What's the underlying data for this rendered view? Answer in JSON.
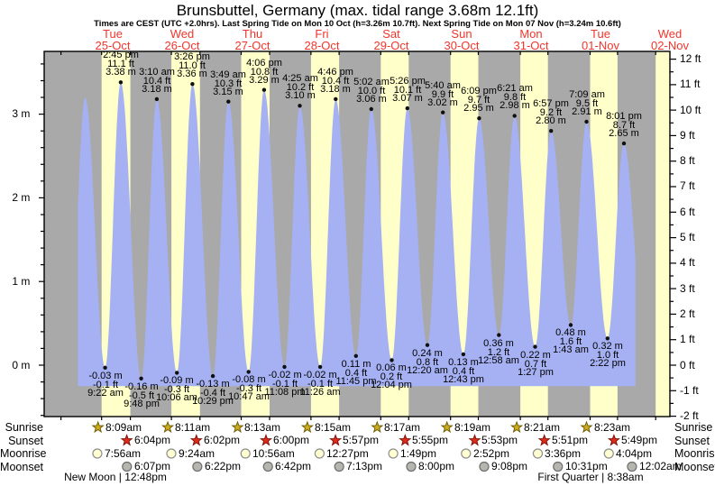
{
  "title": "Brunsbuttel, Germany (max. tidal range 3.68m 12.1ft)",
  "subtitle": "Times are CEST (UTC +2.0hrs). Last Spring Tide on Mon 10 Oct (h=3.26m 10.7ft). Next Spring Tide on Mon 07 Nov (h=3.24m 10.6ft)",
  "days": [
    {
      "weekday": "Tue",
      "date": "25-Oct"
    },
    {
      "weekday": "Wed",
      "date": "26-Oct"
    },
    {
      "weekday": "Thu",
      "date": "27-Oct"
    },
    {
      "weekday": "Fri",
      "date": "28-Oct"
    },
    {
      "weekday": "Sat",
      "date": "29-Oct"
    },
    {
      "weekday": "Sun",
      "date": "30-Oct"
    },
    {
      "weekday": "Mon",
      "date": "31-Oct"
    },
    {
      "weekday": "Tue",
      "date": "01-Nov"
    },
    {
      "weekday": "Wed",
      "date": "02-Nov"
    }
  ],
  "chart_data": {
    "type": "area",
    "y_axis_left": {
      "unit": "m",
      "ticks": [
        0,
        1,
        2,
        3
      ]
    },
    "y_axis_right": {
      "unit": "ft",
      "ticks": [
        -2,
        -1,
        0,
        1,
        2,
        3,
        4,
        5,
        6,
        7,
        8,
        9,
        10,
        11,
        12
      ]
    },
    "high_tides": [
      {
        "time": "2:45 pm",
        "ft": "11.1 ft",
        "m": "3.38 m",
        "t": 0.6146,
        "h": 3.38
      },
      {
        "time": "3:10 am",
        "ft": "10.4 ft",
        "m": "3.18 m",
        "t": 1.1319,
        "h": 3.18
      },
      {
        "time": "3:26 pm",
        "ft": "11.0 ft",
        "m": "3.36 m",
        "t": 1.6431,
        "h": 3.36
      },
      {
        "time": "3:49 am",
        "ft": "10.3 ft",
        "m": "3.15 m",
        "t": 2.159,
        "h": 3.15
      },
      {
        "time": "4:06 pm",
        "ft": "10.8 ft",
        "m": "3.29 m",
        "t": 2.6708,
        "h": 3.29
      },
      {
        "time": "4:25 am",
        "ft": "10.2 ft",
        "m": "3.10 m",
        "t": 3.184,
        "h": 3.1
      },
      {
        "time": "4:46 pm",
        "ft": "10.4 ft",
        "m": "3.18 m",
        "t": 3.6986,
        "h": 3.18
      },
      {
        "time": "5:02 am",
        "ft": "10.0 ft",
        "m": "3.06 m",
        "t": 4.2097,
        "h": 3.06
      },
      {
        "time": "5:26 pm",
        "ft": "10.1 ft",
        "m": "3.07 m",
        "t": 4.7264,
        "h": 3.07
      },
      {
        "time": "5:40 am",
        "ft": "9.9 ft",
        "m": "3.02 m",
        "t": 5.2361,
        "h": 3.02
      },
      {
        "time": "6:09 pm",
        "ft": "9.7 ft",
        "m": "2.95 m",
        "t": 5.7563,
        "h": 2.95
      },
      {
        "time": "6:21 am",
        "ft": "9.8 ft",
        "m": "2.98 m",
        "t": 6.2646,
        "h": 2.98
      },
      {
        "time": "6:57 pm",
        "ft": "9.2 ft",
        "m": "2.80 m",
        "t": 6.7896,
        "h": 2.8
      },
      {
        "time": "7:09 am",
        "ft": "9.5 ft",
        "m": "2.91 m",
        "t": 7.2979,
        "h": 2.91
      },
      {
        "time": "8:01 pm",
        "ft": "8.7 ft",
        "m": "2.65 m",
        "t": 7.834,
        "h": 2.65
      }
    ],
    "low_tides": [
      {
        "m": "-0.03 m",
        "ft": "-0.1 ft",
        "time": "9:22 am",
        "t": 0.3903,
        "h": -0.03
      },
      {
        "m": "-0.16 m",
        "ft": "-0.5 ft",
        "time": "9:48 pm",
        "t": 0.9083,
        "h": -0.16
      },
      {
        "m": "-0.09 m",
        "ft": "-0.3 ft",
        "time": "10:06 am",
        "t": 1.4208,
        "h": -0.09
      },
      {
        "m": "-0.13 m",
        "ft": "-0.4 ft",
        "time": "10:29 pm",
        "t": 1.9368,
        "h": -0.13
      },
      {
        "m": "-0.08 m",
        "ft": "-0.3 ft",
        "time": "10:47 am",
        "t": 2.4493,
        "h": -0.08
      },
      {
        "m": "-0.02 m",
        "ft": "-0.1 ft",
        "time": "11:08 pm",
        "t": 2.9639,
        "h": -0.02
      },
      {
        "m": "-0.02 m",
        "ft": "-0.1 ft",
        "time": "11:26 am",
        "t": 3.4764,
        "h": -0.02
      },
      {
        "m": "0.11 m",
        "ft": "0.4 ft",
        "time": "11:45 pm",
        "t": 3.9896,
        "h": 0.11
      },
      {
        "m": "0.06 m",
        "ft": "0.2 ft",
        "time": "12:04 pm",
        "t": 4.5028,
        "h": 0.06
      },
      {
        "m": "0.24 m",
        "ft": "0.8 ft",
        "time": "12:20 am",
        "t": 5.0139,
        "h": 0.24
      },
      {
        "m": "0.13 m",
        "ft": "0.4 ft",
        "time": "12:43 pm",
        "t": 5.5299,
        "h": 0.13
      },
      {
        "m": "0.36 m",
        "ft": "1.2 ft",
        "time": "12:58 am",
        "t": 6.0403,
        "h": 0.36
      },
      {
        "m": "0.22 m",
        "ft": "0.7 ft",
        "time": "1:27 pm",
        "t": 6.5604,
        "h": 0.22
      },
      {
        "m": "0.48 m",
        "ft": "1.6 ft",
        "time": "1:43 am",
        "t": 7.0715,
        "h": 0.48
      },
      {
        "m": "0.32 m",
        "ft": "1.0 ft",
        "time": "2:22 pm",
        "t": 7.5986,
        "h": 0.32
      }
    ],
    "unlabeled_anchors": [
      {
        "t": -0.135,
        "h": -0.1
      },
      {
        "t": 0.104,
        "h": 3.2
      },
      {
        "t": 8.115,
        "h": 0.5
      }
    ],
    "curve_span_days": [
      0,
      8
    ],
    "water_baseline_m": -0.25,
    "edge_daylight_start_t": 8.29
  },
  "astro": {
    "rows": [
      {
        "label": "Sunrise",
        "icon": "sunrise-star",
        "entries": [
          {
            "time": "8:09am",
            "t": 0.3396
          },
          {
            "time": "8:11am",
            "t": 1.341
          },
          {
            "time": "8:13am",
            "t": 2.3424
          },
          {
            "time": "8:15am",
            "t": 3.3438
          },
          {
            "time": "8:17am",
            "t": 4.3451
          },
          {
            "time": "8:19am",
            "t": 5.3465
          },
          {
            "time": "8:21am",
            "t": 6.3479
          },
          {
            "time": "8:23am",
            "t": 7.3493
          }
        ]
      },
      {
        "label": "Sunset",
        "icon": "sunset-star",
        "entries": [
          {
            "time": "6:04pm",
            "t": 0.7528
          },
          {
            "time": "6:02pm",
            "t": 1.7514
          },
          {
            "time": "6:00pm",
            "t": 2.75
          },
          {
            "time": "5:57pm",
            "t": 3.7479
          },
          {
            "time": "5:55pm",
            "t": 4.7465
          },
          {
            "time": "5:53pm",
            "t": 5.7451
          },
          {
            "time": "5:51pm",
            "t": 6.7438
          },
          {
            "time": "5:49pm",
            "t": 7.7424
          }
        ]
      },
      {
        "label": "Moonrise",
        "icon": "moonrise-circle",
        "entries": [
          {
            "time": "7:56am",
            "t": 0.3306
          },
          {
            "time": "9:24am",
            "t": 1.3917
          },
          {
            "time": "10:56am",
            "t": 2.4556
          },
          {
            "time": "12:27pm",
            "t": 3.5188
          },
          {
            "time": "1:49pm",
            "t": 4.5757
          },
          {
            "time": "2:52pm",
            "t": 5.6194
          },
          {
            "time": "3:36pm",
            "t": 6.65
          },
          {
            "time": "4:04pm",
            "t": 7.6694
          }
        ]
      },
      {
        "label": "Moonset",
        "icon": "moonset-circle",
        "entries": [
          {
            "time": "6:07pm",
            "t": 0.7549
          },
          {
            "time": "6:22pm",
            "t": 1.7653
          },
          {
            "time": "6:42pm",
            "t": 2.7792
          },
          {
            "time": "7:13pm",
            "t": 3.8007
          },
          {
            "time": "8:00pm",
            "t": 4.8333
          },
          {
            "time": "9:08pm",
            "t": 5.8806
          },
          {
            "time": "10:31pm",
            "t": 6.9382
          },
          {
            "time": "12:02am",
            "t": 8.0014
          }
        ]
      }
    ],
    "phases": [
      {
        "text": "New Moon | 12:48pm",
        "t": 0.5333
      },
      {
        "text": "First Quarter | 8:38am",
        "t": 7.3597
      }
    ]
  },
  "colors": {
    "night": "#a9a9a9",
    "day": "#ffffc9",
    "water": "#a5b1f2",
    "axis": "#000000",
    "day_label": "#f2352b",
    "dot": "#101010",
    "sunrise_star": "#cfae1d",
    "sunrise_star_edge": "#6e5d05",
    "sunset_star": "#e02a1a",
    "sunset_star_edge": "#7e150c",
    "moonrise_fill": "#ffffd2",
    "moonrise_edge": "#8e8e8e",
    "moonset_fill": "#b6b6ae",
    "moonset_edge": "#6e6e6e"
  }
}
